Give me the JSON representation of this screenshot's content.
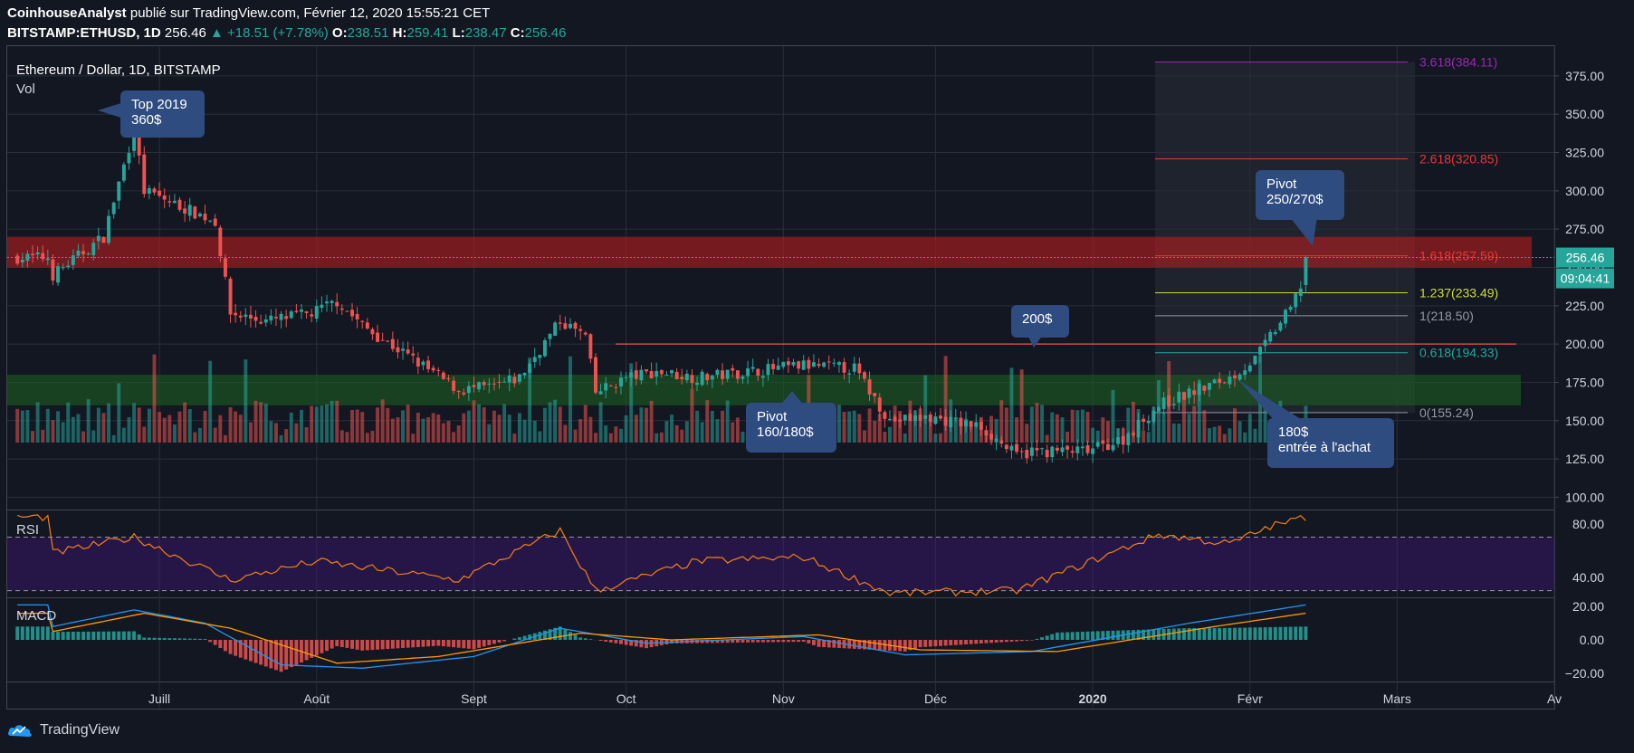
{
  "header": {
    "publisher": "CoinhouseAnalyst",
    "published_text": "publié sur TradingView.com, Février 12, 2020 15:55:21 CET",
    "symbol": "BITSTAMP:ETHUSD, 1D",
    "last": "256.46",
    "change": "+18.51 (+7.78%)",
    "o_label": "O:",
    "o": "238.51",
    "h_label": "H:",
    "h": "259.41",
    "l_label": "L:",
    "l": "238.47",
    "c_label": "C:",
    "c": "256.46"
  },
  "pane_title": "Ethereum / Dollar, 1D, BITSTAMP",
  "vol_label": "Vol",
  "rsi_label": "RSI",
  "macd_label": "MACD",
  "footer_brand": "TradingView",
  "colors": {
    "up": "#26a69a",
    "down": "#ef5350",
    "background": "#131722"
  },
  "annotations": {
    "top2019": [
      "Top 2019",
      "360$"
    ],
    "pivot_low": [
      "Pivot",
      "160/180$"
    ],
    "level200": [
      "200$"
    ],
    "pivot_high": [
      "Pivot",
      "250/270$"
    ],
    "buy_entry": [
      "180$",
      "entrée à l'achat"
    ]
  },
  "chart_data": [
    {
      "type": "candlestick",
      "title": "Ethereum / Dollar, 1D, BITSTAMP",
      "x_ticks": [
        "Juill",
        "Août",
        "Sept",
        "Oct",
        "Nov",
        "Déc",
        "2020",
        "Févr",
        "Mars",
        "Av"
      ],
      "y_ticks": [
        "100.00",
        "125.00",
        "150.00",
        "175.00",
        "200.00",
        "225.00",
        "250.00",
        "275.00",
        "300.00",
        "325.00",
        "350.00",
        "375.00"
      ],
      "ylim": [
        92,
        395
      ],
      "last_price_label": "256.46",
      "countdown_label": "09:04:41",
      "price_path": [
        [
          "2019-06-10",
          245
        ],
        [
          "2019-06-20",
          270
        ],
        [
          "2019-06-26",
          340
        ],
        [
          "2019-06-28",
          300
        ],
        [
          "2019-07-05",
          290
        ],
        [
          "2019-07-12",
          280
        ],
        [
          "2019-07-15",
          220
        ],
        [
          "2019-07-22",
          215
        ],
        [
          "2019-07-31",
          220
        ],
        [
          "2019-08-05",
          228
        ],
        [
          "2019-08-10",
          212
        ],
        [
          "2019-08-20",
          190
        ],
        [
          "2019-08-29",
          170
        ],
        [
          "2019-09-05",
          172
        ],
        [
          "2019-09-10",
          178
        ],
        [
          "2019-09-18",
          215
        ],
        [
          "2019-09-23",
          205
        ],
        [
          "2019-09-25",
          168
        ],
        [
          "2019-10-01",
          178
        ],
        [
          "2019-10-07",
          182
        ],
        [
          "2019-10-15",
          178
        ],
        [
          "2019-10-25",
          182
        ],
        [
          "2019-11-05",
          186
        ],
        [
          "2019-11-15",
          184
        ],
        [
          "2019-11-22",
          150
        ],
        [
          "2019-11-30",
          152
        ],
        [
          "2019-12-10",
          146
        ],
        [
          "2019-12-17",
          127
        ],
        [
          "2019-12-20",
          130
        ],
        [
          "2019-12-31",
          130
        ],
        [
          "2020-01-07",
          138
        ],
        [
          "2020-01-14",
          160
        ],
        [
          "2020-01-20",
          168
        ],
        [
          "2020-01-28",
          178
        ],
        [
          "2020-02-02",
          190
        ],
        [
          "2020-02-05",
          205
        ],
        [
          "2020-02-09",
          223
        ],
        [
          "2020-02-11",
          238
        ],
        [
          "2020-02-12",
          256.46
        ]
      ],
      "zones": [
        {
          "name": "resistance",
          "from": 250,
          "to": 270,
          "color": "#b71c1c"
        },
        {
          "name": "support",
          "from": 160,
          "to": 180,
          "color": "#1b5e20"
        }
      ],
      "level_lines": [
        {
          "value": 200,
          "color": "#ef5350"
        }
      ],
      "fibonacci": [
        {
          "label": "3.618(384.11)",
          "value": 384.11,
          "color": "#9c27b0"
        },
        {
          "label": "2.618(320.85)",
          "value": 320.85,
          "color": "#e53935"
        },
        {
          "label": "1.618(257.59)",
          "value": 257.59,
          "color": "#e53935"
        },
        {
          "label": "1.237(233.49)",
          "value": 233.49,
          "color": "#cddc39"
        },
        {
          "label": "1(218.50)",
          "value": 218.5,
          "color": "#9598a1"
        },
        {
          "label": "0.618(194.33)",
          "value": 194.33,
          "color": "#26a69a"
        },
        {
          "label": "0(155.24)",
          "value": 155.24,
          "color": "#9598a1"
        }
      ]
    },
    {
      "type": "line",
      "name": "RSI",
      "y_ticks": [
        "40.00",
        "80.00"
      ],
      "ylim": [
        25,
        90
      ],
      "bands": [
        30,
        70
      ],
      "path": [
        [
          "2019-06-10",
          58
        ],
        [
          "2019-06-26",
          70
        ],
        [
          "2019-07-15",
          38
        ],
        [
          "2019-08-01",
          52
        ],
        [
          "2019-08-29",
          38
        ],
        [
          "2019-09-18",
          75
        ],
        [
          "2019-09-25",
          30
        ],
        [
          "2019-10-15",
          52
        ],
        [
          "2019-11-05",
          55
        ],
        [
          "2019-11-22",
          28
        ],
        [
          "2019-12-17",
          30
        ],
        [
          "2020-01-14",
          72
        ],
        [
          "2020-01-28",
          65
        ],
        [
          "2020-02-05",
          78
        ],
        [
          "2020-02-12",
          85
        ]
      ]
    },
    {
      "type": "line",
      "name": "MACD",
      "y_ticks": [
        "20.00",
        "0.00",
        "−20.00"
      ],
      "ylim": [
        -25,
        25
      ],
      "macd_path": [
        [
          "2019-06-10",
          8
        ],
        [
          "2019-06-26",
          18
        ],
        [
          "2019-07-10",
          10
        ],
        [
          "2019-07-25",
          -15
        ],
        [
          "2019-08-10",
          -17
        ],
        [
          "2019-09-01",
          -10
        ],
        [
          "2019-09-18",
          7
        ],
        [
          "2019-10-05",
          -2
        ],
        [
          "2019-11-05",
          2
        ],
        [
          "2019-11-25",
          -9
        ],
        [
          "2019-12-20",
          -7
        ],
        [
          "2020-01-20",
          10
        ],
        [
          "2020-02-12",
          21
        ]
      ],
      "signal_path": [
        [
          "2019-06-10",
          5
        ],
        [
          "2019-06-28",
          16
        ],
        [
          "2019-07-15",
          7
        ],
        [
          "2019-08-05",
          -14
        ],
        [
          "2019-08-25",
          -10
        ],
        [
          "2019-09-22",
          4
        ],
        [
          "2019-10-10",
          0
        ],
        [
          "2019-11-08",
          3
        ],
        [
          "2019-11-28",
          -6
        ],
        [
          "2019-12-25",
          -7
        ],
        [
          "2020-01-25",
          8
        ],
        [
          "2020-02-12",
          16
        ]
      ]
    }
  ]
}
